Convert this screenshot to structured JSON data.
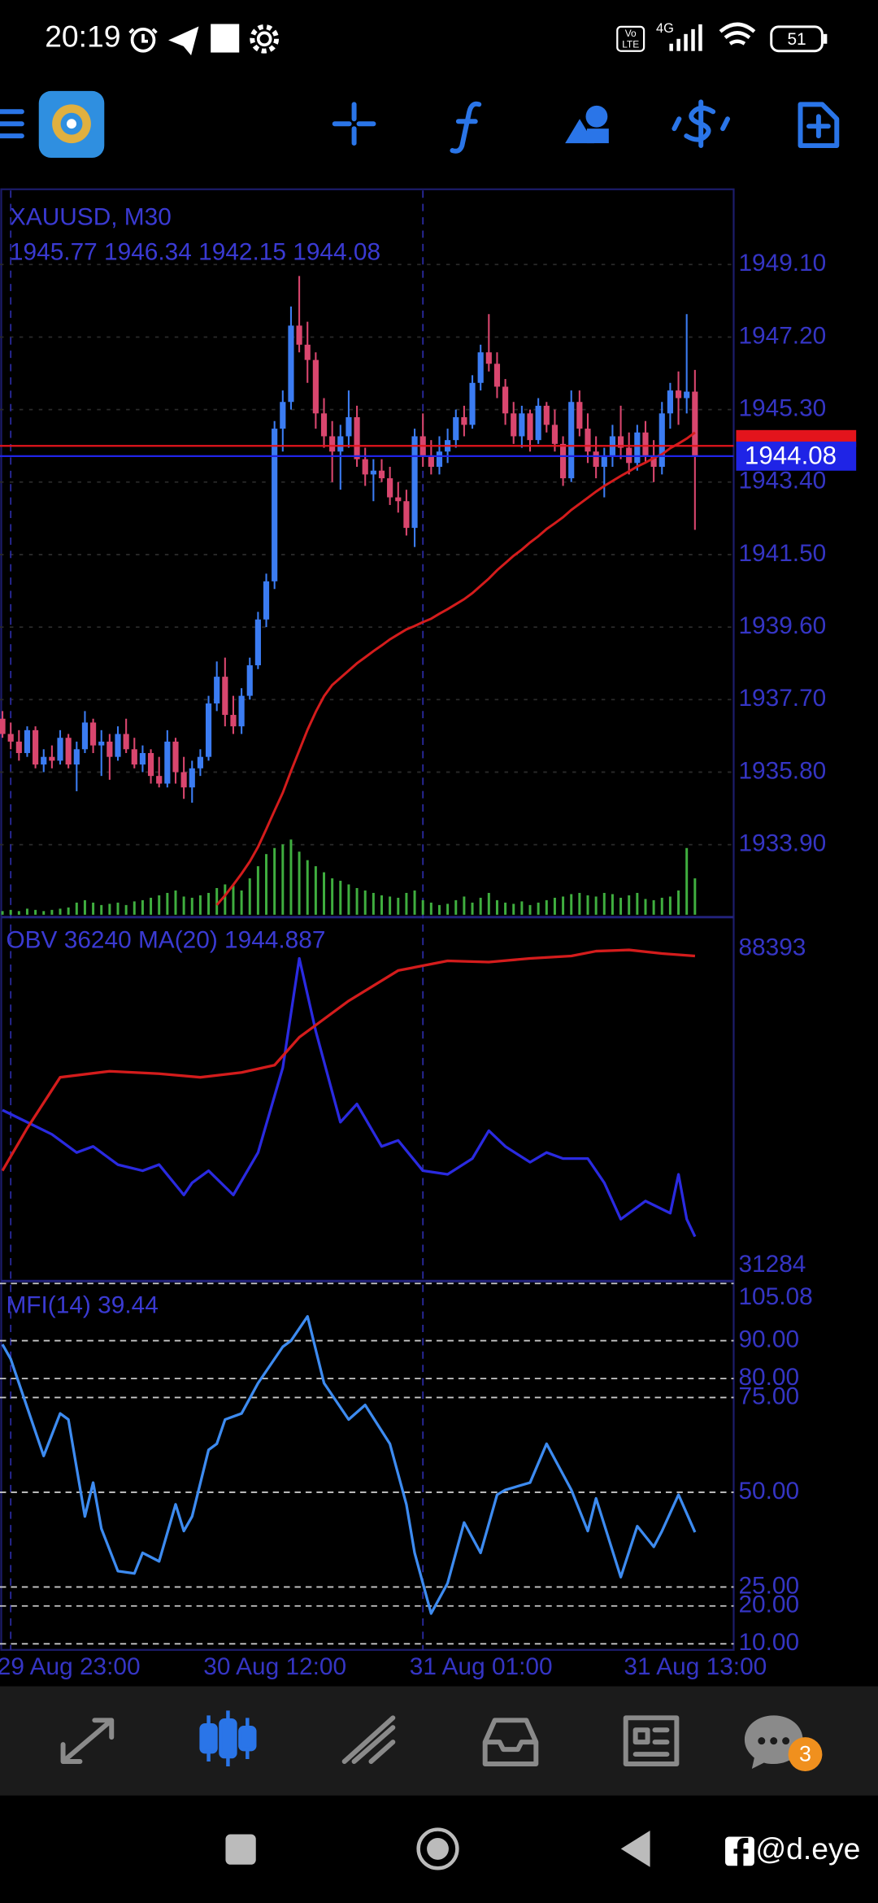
{
  "status_bar": {
    "time": "20:19",
    "volte": [
      "Vo",
      "LTE"
    ],
    "network": "4G",
    "battery": "51"
  },
  "chart_data": [
    {
      "type": "candlestick",
      "title": "XAUUSD, M30",
      "subtitle": "1945.77 1946.34 1942.15 1944.08",
      "up_color": "#3b7cf2",
      "down_color": "#d9466e",
      "xlim": [
        -0.3,
        88.7
      ],
      "ylim": [
        1932.0,
        1951.04
      ],
      "xticks": [
        {
          "value": 1,
          "label": "29 Aug 23:00"
        },
        {
          "value": 26,
          "label": "30 Aug 12:00"
        },
        {
          "value": 51,
          "label": "31 Aug 01:00"
        },
        {
          "value": 77,
          "label": "31 Aug 13:00"
        }
      ],
      "yticks": [
        {
          "value": 1949.1,
          "label": "1949.10"
        },
        {
          "value": 1947.2,
          "label": "1947.20"
        },
        {
          "value": 1945.3,
          "label": "1945.30"
        },
        {
          "value": 1943.4,
          "label": "1943.40"
        },
        {
          "value": 1941.5,
          "label": "1941.50"
        },
        {
          "value": 1939.6,
          "label": "1939.60"
        },
        {
          "value": 1937.7,
          "label": "1937.70"
        },
        {
          "value": 1935.8,
          "label": "1935.80"
        },
        {
          "value": 1933.9,
          "label": "1933.90"
        }
      ],
      "grid": true,
      "current_price": 1944.08,
      "current_price_color": "#1f24e6",
      "ask_price": 1944.35,
      "ask_color": "#e3141c",
      "candles": [
        [
          1937.2,
          1937.4,
          1936.7,
          1936.8
        ],
        [
          1936.8,
          1937.1,
          1936.4,
          1936.6
        ],
        [
          1936.6,
          1936.9,
          1936.1,
          1936.3
        ],
        [
          1936.3,
          1937.0,
          1936.2,
          1936.9
        ],
        [
          1936.9,
          1937.0,
          1935.9,
          1936.0
        ],
        [
          1936.0,
          1936.4,
          1935.8,
          1936.2
        ],
        [
          1936.2,
          1936.5,
          1935.9,
          1936.1
        ],
        [
          1936.1,
          1936.9,
          1936.0,
          1936.7
        ],
        [
          1936.7,
          1936.8,
          1935.9,
          1936.0
        ],
        [
          1936.0,
          1936.6,
          1935.3,
          1936.4
        ],
        [
          1936.4,
          1937.4,
          1936.3,
          1937.1
        ],
        [
          1937.1,
          1937.2,
          1936.3,
          1936.5
        ],
        [
          1936.5,
          1936.9,
          1935.7,
          1936.6
        ],
        [
          1936.6,
          1936.8,
          1935.6,
          1936.2
        ],
        [
          1936.2,
          1937.0,
          1936.1,
          1936.8
        ],
        [
          1936.8,
          1937.2,
          1936.3,
          1936.4
        ],
        [
          1936.4,
          1936.7,
          1935.9,
          1936.0
        ],
        [
          1936.0,
          1936.5,
          1935.8,
          1936.3
        ],
        [
          1936.3,
          1936.4,
          1935.5,
          1935.7
        ],
        [
          1935.7,
          1936.2,
          1935.4,
          1935.5
        ],
        [
          1935.5,
          1936.9,
          1935.4,
          1936.6
        ],
        [
          1936.6,
          1936.7,
          1935.5,
          1935.8
        ],
        [
          1935.8,
          1936.2,
          1935.1,
          1935.4
        ],
        [
          1935.4,
          1936.1,
          1935.0,
          1935.9
        ],
        [
          1935.9,
          1936.4,
          1935.7,
          1936.2
        ],
        [
          1936.2,
          1937.8,
          1936.1,
          1937.6
        ],
        [
          1937.6,
          1938.7,
          1937.4,
          1938.3
        ],
        [
          1938.3,
          1938.8,
          1937.0,
          1937.3
        ],
        [
          1937.3,
          1937.8,
          1936.8,
          1937.0
        ],
        [
          1937.0,
          1938.0,
          1936.8,
          1937.8
        ],
        [
          1937.8,
          1938.8,
          1937.7,
          1938.6
        ],
        [
          1938.6,
          1940.0,
          1938.5,
          1939.8
        ],
        [
          1939.8,
          1941.0,
          1939.6,
          1940.8
        ],
        [
          1940.8,
          1945.0,
          1940.6,
          1944.8
        ],
        [
          1944.8,
          1945.8,
          1944.2,
          1945.5
        ],
        [
          1945.5,
          1948.0,
          1945.3,
          1947.5
        ],
        [
          1947.5,
          1948.8,
          1946.8,
          1947.0
        ],
        [
          1947.0,
          1947.6,
          1946.0,
          1946.6
        ],
        [
          1946.6,
          1946.8,
          1944.8,
          1945.2
        ],
        [
          1945.2,
          1945.6,
          1944.3,
          1944.6
        ],
        [
          1944.6,
          1945.0,
          1943.4,
          1944.2
        ],
        [
          1944.2,
          1944.9,
          1943.2,
          1944.6
        ],
        [
          1944.6,
          1945.8,
          1944.3,
          1945.1
        ],
        [
          1945.1,
          1945.4,
          1943.8,
          1944.0
        ],
        [
          1944.0,
          1944.3,
          1943.3,
          1943.6
        ],
        [
          1943.6,
          1944.0,
          1942.9,
          1943.7
        ],
        [
          1943.7,
          1944.0,
          1943.4,
          1943.5
        ],
        [
          1943.5,
          1943.8,
          1942.8,
          1943.0
        ],
        [
          1943.0,
          1943.4,
          1942.6,
          1942.9
        ],
        [
          1942.9,
          1943.2,
          1942.0,
          1942.2
        ],
        [
          1942.2,
          1944.8,
          1941.7,
          1944.6
        ],
        [
          1944.6,
          1945.2,
          1943.8,
          1944.1
        ],
        [
          1944.1,
          1944.5,
          1943.6,
          1943.8
        ],
        [
          1943.8,
          1944.6,
          1943.6,
          1944.2
        ],
        [
          1944.2,
          1944.8,
          1943.9,
          1944.5
        ],
        [
          1944.5,
          1945.3,
          1944.3,
          1945.1
        ],
        [
          1945.1,
          1945.4,
          1944.6,
          1944.9
        ],
        [
          1944.9,
          1946.2,
          1944.8,
          1946.0
        ],
        [
          1946.0,
          1947.0,
          1945.8,
          1946.8
        ],
        [
          1946.8,
          1947.8,
          1946.3,
          1946.5
        ],
        [
          1946.5,
          1946.8,
          1945.6,
          1945.9
        ],
        [
          1945.9,
          1946.1,
          1944.9,
          1945.2
        ],
        [
          1945.2,
          1945.5,
          1944.4,
          1944.6
        ],
        [
          1944.6,
          1945.4,
          1944.3,
          1945.2
        ],
        [
          1945.2,
          1945.3,
          1944.2,
          1944.5
        ],
        [
          1944.5,
          1945.6,
          1944.4,
          1945.4
        ],
        [
          1945.4,
          1945.5,
          1944.7,
          1944.9
        ],
        [
          1944.9,
          1945.3,
          1944.2,
          1944.4
        ],
        [
          1944.4,
          1944.6,
          1943.3,
          1943.5
        ],
        [
          1943.5,
          1945.8,
          1943.4,
          1945.5
        ],
        [
          1945.5,
          1945.8,
          1944.6,
          1944.8
        ],
        [
          1944.8,
          1945.2,
          1943.9,
          1944.2
        ],
        [
          1944.2,
          1944.6,
          1943.5,
          1943.8
        ],
        [
          1943.8,
          1944.3,
          1943.0,
          1944.1
        ],
        [
          1944.1,
          1944.9,
          1943.8,
          1944.6
        ],
        [
          1944.6,
          1945.4,
          1944.0,
          1944.3
        ],
        [
          1944.3,
          1944.7,
          1943.6,
          1943.9
        ],
        [
          1943.9,
          1944.9,
          1943.7,
          1944.7
        ],
        [
          1944.7,
          1945.0,
          1943.9,
          1944.1
        ],
        [
          1944.1,
          1944.5,
          1943.4,
          1943.8
        ],
        [
          1943.8,
          1945.5,
          1943.6,
          1945.2
        ],
        [
          1945.2,
          1946.0,
          1944.8,
          1945.8
        ],
        [
          1945.8,
          1946.3,
          1944.9,
          1945.6
        ],
        [
          1945.6,
          1947.8,
          1945.2,
          1945.77
        ],
        [
          1945.77,
          1946.34,
          1942.15,
          1944.08
        ]
      ],
      "ma": {
        "color": "#d41c1c",
        "values": [
          null,
          null,
          null,
          null,
          null,
          null,
          null,
          null,
          null,
          null,
          null,
          null,
          null,
          null,
          null,
          null,
          null,
          null,
          null,
          null,
          null,
          null,
          null,
          null,
          null,
          null,
          1932.32,
          1932.57,
          1932.85,
          1933.14,
          1933.46,
          1933.84,
          1934.31,
          1934.79,
          1935.26,
          1935.83,
          1936.37,
          1936.91,
          1937.38,
          1937.79,
          1938.08,
          1938.27,
          1938.46,
          1938.65,
          1938.81,
          1938.97,
          1939.12,
          1939.28,
          1939.41,
          1939.54,
          1939.63,
          1939.73,
          1939.82,
          1939.95,
          1940.07,
          1940.2,
          1940.33,
          1940.49,
          1940.68,
          1940.87,
          1941.09,
          1941.28,
          1941.47,
          1941.63,
          1941.82,
          1941.98,
          1942.17,
          1942.32,
          1942.48,
          1942.67,
          1942.83,
          1942.99,
          1943.15,
          1943.3,
          1943.43,
          1943.56,
          1943.68,
          1943.81,
          1943.91,
          1944.03,
          1944.13,
          1944.29,
          1944.41,
          1944.54,
          1944.7
        ]
      },
      "volume_color": "#3fae3f",
      "vlim": [
        0,
        100
      ],
      "volumes": [
        3,
        4,
        3,
        5,
        4,
        3,
        4,
        5,
        6,
        10,
        12,
        10,
        8,
        9,
        10,
        8,
        11,
        12,
        14,
        16,
        18,
        20,
        15,
        14,
        16,
        18,
        22,
        25,
        24,
        20,
        30,
        40,
        50,
        55,
        58,
        62,
        52,
        45,
        40,
        35,
        30,
        28,
        25,
        22,
        20,
        18,
        16,
        15,
        14,
        18,
        20,
        12,
        10,
        8,
        9,
        12,
        15,
        10,
        14,
        18,
        12,
        10,
        9,
        11,
        8,
        10,
        12,
        14,
        15,
        17,
        18,
        16,
        15,
        18,
        17,
        14,
        16,
        18,
        13,
        12,
        14,
        15,
        20,
        55,
        30
      ]
    },
    {
      "type": "line",
      "title": "OBV 36240 MA(20) 1944.887",
      "xlim": [
        -0.3,
        88.7
      ],
      "ylim": [
        31284,
        88393
      ],
      "yticks": [
        88393,
        31284
      ],
      "series": [
        {
          "color": "#2a2ae0",
          "x": [
            0,
            3,
            6,
            9,
            11,
            14,
            17,
            19,
            22,
            23,
            25,
            28,
            31,
            34,
            36,
            38,
            41,
            43,
            46,
            48,
            51,
            54,
            57,
            59,
            61,
            64,
            66,
            68,
            71,
            73,
            75,
            78,
            81,
            82,
            83,
            84
          ],
          "values": [
            58062,
            55970,
            53878,
            50740,
            51786,
            48648,
            47602,
            48648,
            43418,
            45510,
            47602,
            43418,
            50740,
            65384,
            84212,
            71660,
            55970,
            59108,
            51786,
            52832,
            47602,
            46974,
            49694,
            54505,
            51786,
            49066,
            50740,
            49694,
            49694,
            45510,
            39234,
            42372,
            40280,
            46974,
            39234,
            36240
          ]
        },
        {
          "color": "#d41c1c",
          "x": [
            0,
            3,
            7,
            13,
            19,
            24,
            29,
            33,
            36,
            42,
            48,
            54,
            59,
            64,
            69,
            72,
            76,
            80,
            84
          ],
          "values": [
            47602,
            54924,
            63710,
            64756,
            64338,
            63710,
            64547,
            65802,
            70614,
            76890,
            82120,
            83793,
            83584,
            84212,
            84630,
            85467,
            85676,
            85048,
            84630
          ]
        }
      ]
    },
    {
      "type": "line",
      "title": "MFI(14) 39.44",
      "xlim": [
        -0.3,
        88.7
      ],
      "ylim": [
        10,
        105.08
      ],
      "yticks": [
        105.08,
        {
          "value": 90,
          "label": "90.00"
        },
        {
          "value": 80,
          "label": "80.00"
        },
        {
          "value": 75,
          "label": "75.00"
        },
        {
          "value": 50,
          "label": "50.00"
        },
        {
          "value": 25,
          "label": "25.00"
        },
        {
          "value": 20,
          "label": "20.00"
        },
        {
          "value": 10,
          "label": "10.00"
        }
      ],
      "series": [
        {
          "color": "#3d8bf0",
          "x": [
            0,
            1,
            3,
            5,
            7,
            8,
            10,
            11,
            12,
            14,
            16,
            17,
            19,
            21,
            22,
            23,
            25,
            26,
            27,
            29,
            31,
            34,
            35,
            37,
            39,
            42,
            44,
            47,
            49,
            50,
            52,
            54,
            56,
            58,
            60,
            61,
            64,
            66,
            69,
            71,
            72,
            75,
            77,
            79,
            80,
            82,
            84
          ],
          "values": [
            89.04,
            85.2,
            72.4,
            59.6,
            70.8,
            69.2,
            43.6,
            52.56,
            40.4,
            29.2,
            28.56,
            34.0,
            31.76,
            46.8,
            39.76,
            43.6,
            61.2,
            62.8,
            69.2,
            70.8,
            78.8,
            88.4,
            90.0,
            96.4,
            78.8,
            69.2,
            73.04,
            62.8,
            46.8,
            34.0,
            18.0,
            26.0,
            42.0,
            34.0,
            49.36,
            50.64,
            52.56,
            62.8,
            50.64,
            39.76,
            48.4,
            27.6,
            41.04,
            35.6,
            39.76,
            49.36,
            39.44
          ]
        }
      ]
    }
  ],
  "nav": {
    "chat_badge": "3"
  },
  "watermark": "@d.eye"
}
